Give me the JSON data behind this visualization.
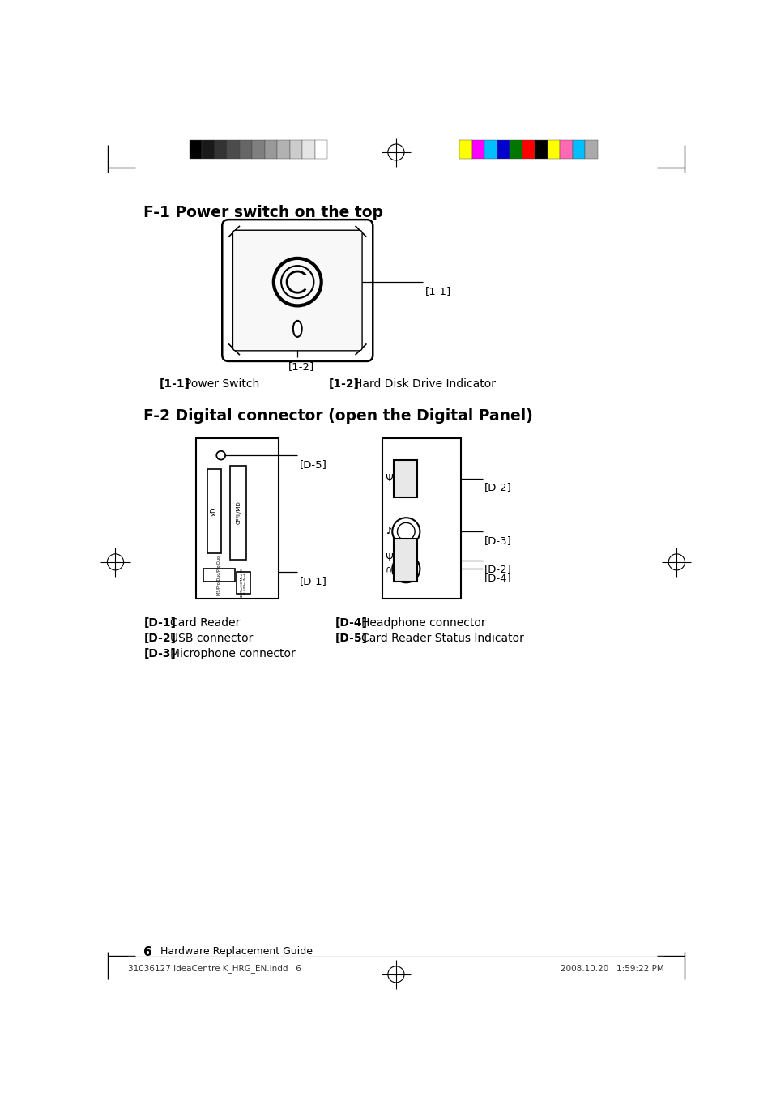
{
  "title_f1": "F-1 Power switch on the top",
  "title_f2": "F-2 Digital connector (open the Digital Panel)",
  "label_11": "[1-1]",
  "label_12": "[1-2]",
  "desc_11_a": "[1-1]",
  "desc_11_b": "Power Switch",
  "desc_12_a": "[1-2]",
  "desc_12_b": "Hard Disk Drive Indicator",
  "label_d1": "[D-1]",
  "label_d2": "[D-2]",
  "label_d3": "[D-3]",
  "label_d4": "[D-4]",
  "label_d5": "[D-5]",
  "desc_d1_a": "[D-1]",
  "desc_d1_b": "Card Reader",
  "desc_d2_a": "[D-2]",
  "desc_d2_b": "USB connector",
  "desc_d3_a": "[D-3]",
  "desc_d3_b": "Microphone connector",
  "desc_d4_a": "[D-4]",
  "desc_d4_b": "Headphone connector",
  "desc_d5_a": "[D-5]",
  "desc_d5_b": "Card Reader Status Indicator",
  "footer_left": "31036127 IdeaCentre K_HRG_EN.indd   6",
  "footer_right": "2008.10.20   1:59:22 PM",
  "footer_page": "6",
  "footer_guide": "Hardware Replacement Guide",
  "gray_colors": [
    "#000000",
    "#191919",
    "#333333",
    "#4c4c4c",
    "#666666",
    "#7f7f7f",
    "#999999",
    "#b2b2b2",
    "#cccccc",
    "#e5e5e5",
    "#ffffff"
  ],
  "color_bars": [
    "#ffff00",
    "#ff00ff",
    "#00bfff",
    "#0000cd",
    "#007700",
    "#ff0000",
    "#000000",
    "#ffff00",
    "#ff69b4",
    "#00bfff",
    "#aaaaaa"
  ],
  "bg_color": "#ffffff",
  "text_color": "#000000"
}
